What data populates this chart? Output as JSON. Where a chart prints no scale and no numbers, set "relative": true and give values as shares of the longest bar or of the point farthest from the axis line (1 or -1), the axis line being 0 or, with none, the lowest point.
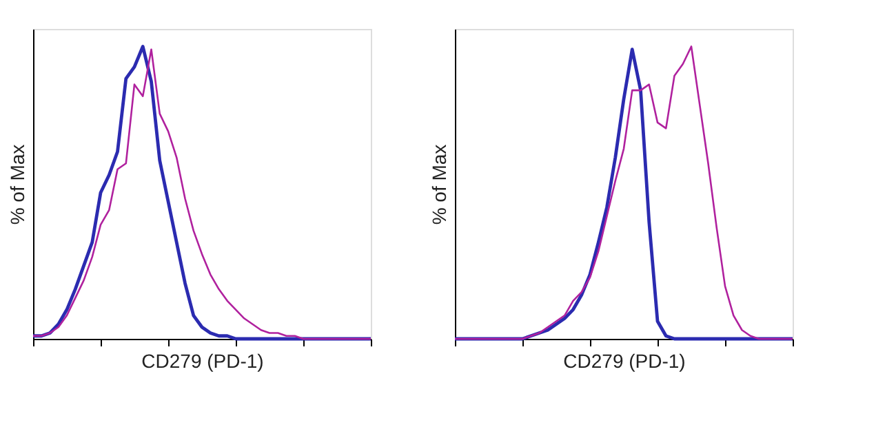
{
  "chart_data": [
    {
      "type": "line",
      "relative": true,
      "ylabel": "% of Max",
      "xlabel": "CD279 (PD-1)",
      "tick_labels": false,
      "grid": false,
      "categories": [
        null,
        null,
        null,
        null,
        null,
        null,
        null,
        null,
        null,
        null,
        null,
        null,
        null,
        null,
        null,
        null,
        null,
        null,
        null,
        null,
        null,
        null,
        null,
        null,
        null,
        null,
        null,
        null,
        null,
        null,
        null,
        null,
        null,
        null,
        null,
        null,
        null,
        null,
        null,
        null,
        null
      ],
      "series": [
        {
          "color": "#2b2bb0",
          "values": [
            0.01,
            0.01,
            0.02,
            0.05,
            0.1,
            0.17,
            0.25,
            0.33,
            0.5,
            0.56,
            0.64,
            0.89,
            0.93,
            1,
            0.88,
            0.61,
            0.47,
            0.33,
            0.19,
            0.08,
            0.04,
            0.02,
            0.01,
            0.01,
            0,
            0,
            0,
            0,
            0,
            0,
            0,
            0,
            0,
            0,
            0,
            0,
            0,
            0,
            0,
            0,
            0
          ]
        },
        {
          "color": "#b0219e",
          "values": [
            0.01,
            0.01,
            0.02,
            0.04,
            0.08,
            0.14,
            0.2,
            0.28,
            0.39,
            0.44,
            0.58,
            0.6,
            0.87,
            0.83,
            0.99,
            0.77,
            0.71,
            0.62,
            0.48,
            0.37,
            0.29,
            0.22,
            0.17,
            0.13,
            0.1,
            0.07,
            0.05,
            0.03,
            0.02,
            0.02,
            0.01,
            0.01,
            0,
            0,
            0,
            0,
            0,
            0,
            0,
            0,
            0
          ]
        }
      ]
    },
    {
      "type": "line",
      "relative": true,
      "ylabel": "% of Max",
      "xlabel": "CD279 (PD-1)",
      "tick_labels": false,
      "grid": false,
      "categories": [
        null,
        null,
        null,
        null,
        null,
        null,
        null,
        null,
        null,
        null,
        null,
        null,
        null,
        null,
        null,
        null,
        null,
        null,
        null,
        null,
        null,
        null,
        null,
        null,
        null,
        null,
        null,
        null,
        null,
        null,
        null,
        null,
        null,
        null,
        null,
        null,
        null,
        null,
        null,
        null,
        null
      ],
      "series": [
        {
          "color": "#2b2bb0",
          "values": [
            0,
            0,
            0,
            0,
            0,
            0,
            0,
            0,
            0,
            0.01,
            0.02,
            0.03,
            0.05,
            0.07,
            0.1,
            0.15,
            0.22,
            0.33,
            0.45,
            0.62,
            0.82,
            0.99,
            0.85,
            0.4,
            0.06,
            0.01,
            0,
            0,
            0,
            0,
            0,
            0,
            0,
            0,
            0,
            0,
            0,
            0,
            0,
            0,
            0
          ]
        },
        {
          "color": "#b0219e",
          "values": [
            0,
            0,
            0,
            0,
            0,
            0,
            0,
            0,
            0,
            0.01,
            0.02,
            0.04,
            0.06,
            0.08,
            0.13,
            0.16,
            0.21,
            0.3,
            0.42,
            0.54,
            0.65,
            0.85,
            0.85,
            0.87,
            0.74,
            0.72,
            0.9,
            0.94,
            1,
            0.8,
            0.6,
            0.38,
            0.18,
            0.08,
            0.03,
            0.01,
            0,
            0,
            0,
            0,
            0
          ]
        }
      ]
    }
  ]
}
